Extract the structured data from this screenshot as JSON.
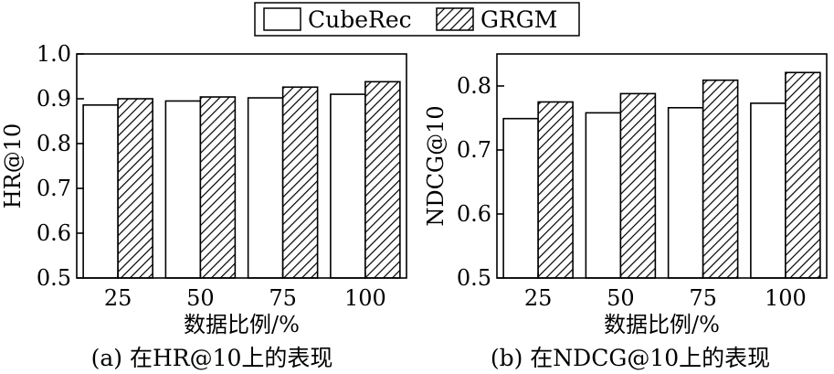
{
  "legend": {
    "items": [
      {
        "label": "CubeRec",
        "pattern": "plain"
      },
      {
        "label": "GRGM",
        "pattern": "hatch"
      }
    ]
  },
  "chart_data": [
    {
      "type": "bar",
      "title": "",
      "caption": "(a) 在HR@10上的表现",
      "xlabel": "数据比例/%",
      "ylabel": "HR@10",
      "categories": [
        "25",
        "50",
        "75",
        "100"
      ],
      "ylim": [
        0.5,
        1.0
      ],
      "yticks": [
        "0.5",
        "0.6",
        "0.7",
        "0.8",
        "0.9",
        "1.0"
      ],
      "series": [
        {
          "name": "CubeRec",
          "values": [
            0.886,
            0.895,
            0.902,
            0.91
          ]
        },
        {
          "name": "GRGM",
          "values": [
            0.9,
            0.904,
            0.926,
            0.938
          ]
        }
      ],
      "legend_position": "top-center",
      "grid": false
    },
    {
      "type": "bar",
      "title": "",
      "caption": "(b) 在NDCG@10上的表现",
      "xlabel": "数据比例/%",
      "ylabel": "NDCG@10",
      "categories": [
        "25",
        "50",
        "75",
        "100"
      ],
      "ylim": [
        0.5,
        0.85
      ],
      "yticks": [
        "0.5",
        "0.6",
        "0.7",
        "0.8"
      ],
      "series": [
        {
          "name": "CubeRec",
          "values": [
            0.749,
            0.758,
            0.766,
            0.773
          ]
        },
        {
          "name": "GRGM",
          "values": [
            0.775,
            0.788,
            0.809,
            0.821
          ]
        }
      ],
      "legend_position": "top-center",
      "grid": false
    }
  ]
}
